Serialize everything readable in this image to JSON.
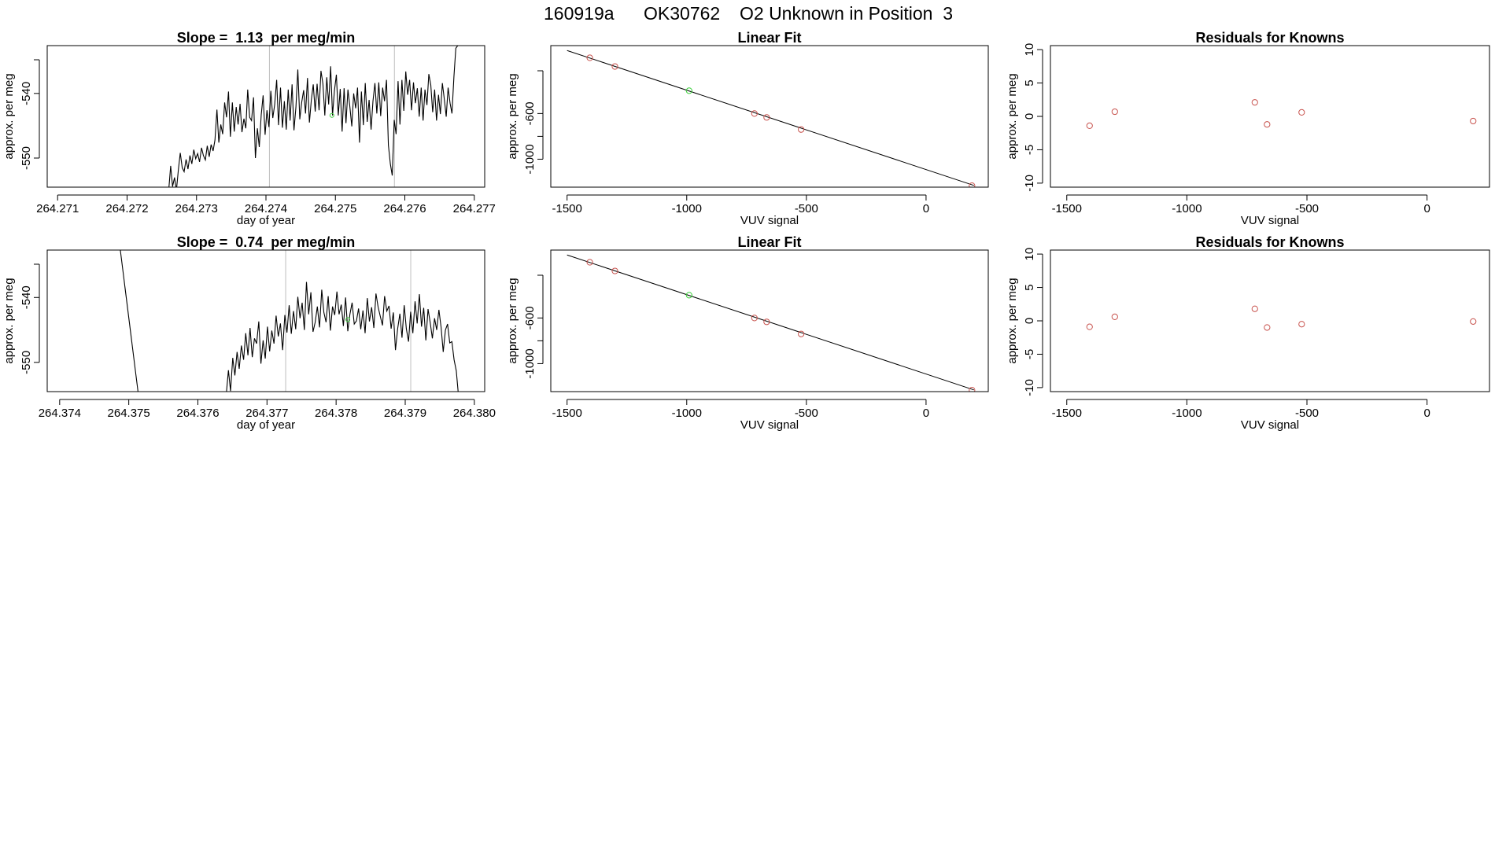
{
  "suptitle": {
    "run_id": "160919a",
    "tank_id": "OK30762",
    "description": "O2 Unknown in Position  3"
  },
  "colors": {
    "axis": "#000000",
    "trace": "#000000",
    "known_point": "#C8534E",
    "unknown_point": "#3CCF3C",
    "vline": "#BEBEBE"
  },
  "chart_data": [
    {
      "id": "ts1",
      "type": "line",
      "title": "Slope =  1.13  per meg/min",
      "xlabel": "day of year",
      "ylabel": "approx. per meg",
      "xlim": [
        264.27085,
        264.27715
      ],
      "ylim": [
        -554.5,
        -532.6
      ],
      "xticks": [
        264.271,
        264.272,
        264.273,
        264.274,
        264.275,
        264.276,
        264.277
      ],
      "xtick_labels": [
        "264.271",
        "264.272",
        "264.273",
        "264.274",
        "264.275",
        "264.276",
        "264.277"
      ],
      "yticks": [
        -550,
        -540
      ],
      "ytick_labels": [
        "-550",
        "-540"
      ],
      "vlines": [
        264.27405,
        264.27585
      ],
      "series": [
        {
          "name": "signal",
          "x_start": 264.2726,
          "x_end": 264.27679,
          "values": [
            -555,
            -551.2,
            -554.4,
            -553,
            -555,
            -551.8,
            -549.2,
            -551.5,
            -552.1,
            -550.2,
            -551.7,
            -549.6,
            -550.9,
            -548.7,
            -550.1,
            -549.3,
            -550.6,
            -548.4,
            -549.6,
            -550.3,
            -548.1,
            -549.8,
            -547.9,
            -548.9,
            -547.2,
            -542.5,
            -547.6,
            -544.8,
            -546.3,
            -541.4,
            -543.7,
            -539.7,
            -546.7,
            -541.4,
            -545.9,
            -542.1,
            -544.8,
            -541.6,
            -546,
            -543.9,
            -545.4,
            -539.4,
            -543.7,
            -544.2,
            -540.6,
            -550,
            -545.4,
            -548.3,
            -543.3,
            -540.3,
            -546.4,
            -542.6,
            -545.2,
            -539.6,
            -543.8,
            -541.7,
            -537.9,
            -544.9,
            -539.1,
            -545.3,
            -541.2,
            -545.6,
            -539.4,
            -544.2,
            -538.6,
            -545.7,
            -542.1,
            -536.3,
            -544,
            -541.4,
            -539.5,
            -543.1,
            -537.6,
            -544.5,
            -541,
            -538.6,
            -542.8,
            -538.5,
            -542.6,
            -536.5,
            -538.5,
            -543.4,
            -537.5,
            -541.7,
            -535.8,
            -543.4,
            -539.6,
            -537.1,
            -543.4,
            -539.3,
            -545.9,
            -539.2,
            -544.6,
            -539.4,
            -542,
            -545.1,
            -540,
            -542.3,
            -539.1,
            -547.6,
            -539.7,
            -544.9,
            -538.4,
            -544.4,
            -541,
            -545.6,
            -541.2,
            -538.4,
            -543.1,
            -538.3,
            -543.5,
            -539.1,
            -541.2,
            -537.9,
            -548,
            -550.9,
            -552.7,
            -544.1,
            -546.3,
            -538.1,
            -544.8,
            -537.9,
            -542.7,
            -536.6,
            -540.2,
            -537.9,
            -542.6,
            -538.3,
            -541.5,
            -539.2,
            -543.6,
            -539.1,
            -544.2,
            -539.4,
            -541.8,
            -537,
            -538.7,
            -542.9,
            -539.4,
            -544.2,
            -540.2,
            -543.2,
            -538.4,
            -540.8,
            -543.6,
            -539.1,
            -541.5,
            -543.1,
            -537.4,
            -533,
            -532.6,
            -531.2
          ]
        },
        {
          "name": "unknown marker",
          "points": [
            [
              264.27495,
              -543.4
            ]
          ]
        }
      ]
    },
    {
      "id": "fit1",
      "type": "scatter",
      "title": "Linear Fit",
      "xlabel": "VUV signal",
      "ylabel": "approx. per meg",
      "xlim": [
        -1568,
        260
      ],
      "ylim": [
        -1245,
        -5
      ],
      "xticks": [
        -1500,
        -1000,
        -500,
        0
      ],
      "xtick_labels": [
        "-1500",
        "-1000",
        "-500",
        "0"
      ],
      "yticks": [
        -1000,
        -600
      ],
      "ytick_labels": [
        "-1000",
        "-600"
      ],
      "fit_line": {
        "x": [
          -1500,
          200
        ],
        "y": [
          -48,
          -1230
        ]
      },
      "known_points": [
        [
          -1405,
          -112
        ],
        [
          -1300,
          -188
        ],
        [
          -717,
          -600
        ],
        [
          -666,
          -634
        ],
        [
          -522,
          -740
        ],
        [
          192,
          -1232
        ]
      ],
      "unknown_points": [
        [
          -990,
          -400
        ]
      ]
    },
    {
      "id": "res1",
      "type": "scatter",
      "title": "Residuals for Knowns",
      "xlabel": "VUV signal",
      "ylabel": "approx. per meg",
      "xlim": [
        -1568,
        260
      ],
      "ylim": [
        -10.6,
        10.6
      ],
      "xticks": [
        -1500,
        -1000,
        -500,
        0
      ],
      "xtick_labels": [
        "-1500",
        "-1000",
        "-500",
        "0"
      ],
      "yticks": [
        -10,
        -5,
        0,
        5,
        10
      ],
      "ytick_labels": [
        "-10",
        "-5",
        "0",
        "5",
        "10"
      ],
      "known_points": [
        [
          -1405,
          -1.4
        ],
        [
          -1300,
          0.7
        ],
        [
          -717,
          2.1
        ],
        [
          -666,
          -1.2
        ],
        [
          -522,
          0.6
        ],
        [
          192,
          -0.7
        ]
      ]
    },
    {
      "id": "ts2",
      "type": "line",
      "title": "Slope =  0.74  per meg/min",
      "xlabel": "day of year",
      "ylabel": "approx. per meg",
      "xlim": [
        264.37382,
        264.38015
      ],
      "ylim": [
        -554.5,
        -532.7
      ],
      "xticks": [
        264.374,
        264.375,
        264.376,
        264.377,
        264.378,
        264.379,
        264.38
      ],
      "xtick_labels": [
        "264.374",
        "264.375",
        "264.376",
        "264.377",
        "264.378",
        "264.379",
        "264.380"
      ],
      "yticks": [
        -550,
        -540
      ],
      "ytick_labels": [
        "-550",
        "-540"
      ],
      "vlines": [
        264.37727,
        264.37908
      ],
      "series": [
        {
          "name": "spike",
          "x": [
            264.37487,
            264.37514
          ],
          "y": [
            -532,
            -555
          ]
        },
        {
          "name": "signal",
          "x_start": 264.37641,
          "x_end": 264.37977,
          "values": [
            -555,
            -551.2,
            -554.4,
            -549.3,
            -552,
            -548.4,
            -551,
            -547.4,
            -549.6,
            -545.5,
            -548.9,
            -544.7,
            -549.2,
            -546.3,
            -547.1,
            -543.7,
            -550.2,
            -546.6,
            -549.4,
            -544.5,
            -548.3,
            -545.1,
            -547.1,
            -542.8,
            -546,
            -544,
            -548.1,
            -542.7,
            -545.4,
            -541.2,
            -545.6,
            -542.1,
            -544.9,
            -539.9,
            -543.2,
            -540.8,
            -545,
            -537.6,
            -542.6,
            -539.2,
            -545.3,
            -543.8,
            -541.4,
            -544.6,
            -538.8,
            -542.3,
            -543.8,
            -539.8,
            -545.1,
            -541.4,
            -542.7,
            -539.1,
            -542.6,
            -541.1,
            -544.4,
            -540,
            -545.2,
            -542.6,
            -540.8,
            -544.1,
            -543.6,
            -541.7,
            -544.9,
            -542,
            -545.5,
            -540.1,
            -543.7,
            -541.5,
            -544.7,
            -539.4,
            -541.5,
            -542.9,
            -544.3,
            -539.8,
            -542.1,
            -541.3,
            -544.8,
            -542.3,
            -548.1,
            -544.8,
            -542.5,
            -546.2,
            -541.2,
            -544.8,
            -546.8,
            -542.2,
            -545.5,
            -540.6,
            -544,
            -539.5,
            -544.5,
            -541.6,
            -546.6,
            -541.8,
            -543.9,
            -546.3,
            -543.2,
            -545,
            -541.9,
            -544.6,
            -548.4,
            -545,
            -544.1,
            -547,
            -546.8,
            -549.6,
            -551.3,
            -555
          ]
        },
        {
          "name": "unknown marker",
          "points": [
            [
              264.37817,
              -543.4
            ]
          ]
        }
      ]
    },
    {
      "id": "fit2",
      "type": "scatter",
      "title": "Linear Fit",
      "xlabel": "VUV signal",
      "ylabel": "approx. per meg",
      "xlim": [
        -1568,
        260
      ],
      "ylim": [
        -1245,
        -5
      ],
      "xticks": [
        -1500,
        -1000,
        -500,
        0
      ],
      "xtick_labels": [
        "-1500",
        "-1000",
        "-500",
        "0"
      ],
      "yticks": [
        -1000,
        -600
      ],
      "ytick_labels": [
        "-1000",
        "-600"
      ],
      "fit_line": {
        "x": [
          -1500,
          200
        ],
        "y": [
          -48,
          -1230
        ]
      },
      "known_points": [
        [
          -1405,
          -112
        ],
        [
          -1300,
          -188
        ],
        [
          -717,
          -600
        ],
        [
          -666,
          -634
        ],
        [
          -522,
          -740
        ],
        [
          192,
          -1232
        ]
      ],
      "unknown_points": [
        [
          -990,
          -400
        ]
      ]
    },
    {
      "id": "res2",
      "type": "scatter",
      "title": "Residuals for Knowns",
      "xlabel": "VUV signal",
      "ylabel": "approx. per meg",
      "xlim": [
        -1568,
        260
      ],
      "ylim": [
        -10.6,
        10.6
      ],
      "xticks": [
        -1500,
        -1000,
        -500,
        0
      ],
      "xtick_labels": [
        "-1500",
        "-1000",
        "-500",
        "0"
      ],
      "yticks": [
        -10,
        -5,
        0,
        5,
        10
      ],
      "ytick_labels": [
        "-10",
        "-5",
        "0",
        "5",
        "10"
      ],
      "known_points": [
        [
          -1405,
          -0.9
        ],
        [
          -1300,
          0.6
        ],
        [
          -717,
          1.8
        ],
        [
          -666,
          -1.0
        ],
        [
          -522,
          -0.5
        ],
        [
          192,
          -0.1
        ]
      ]
    }
  ]
}
